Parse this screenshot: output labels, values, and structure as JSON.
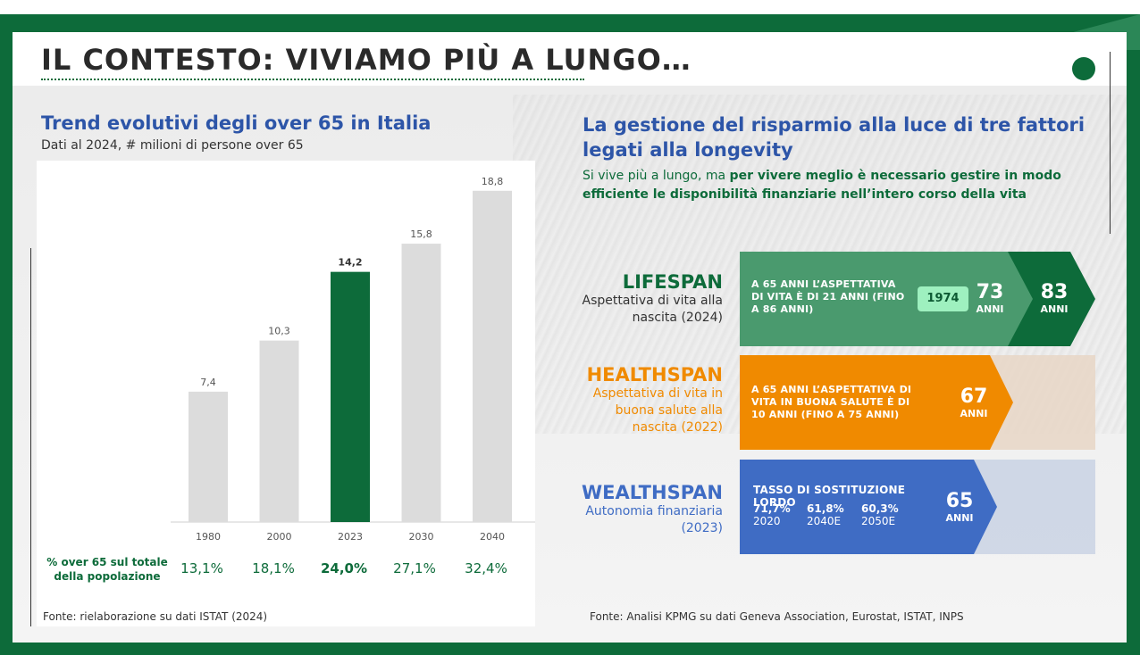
{
  "page": {
    "title": "IL CONTESTO: VIVIAMO PIÙ A LUNGO…"
  },
  "left": {
    "title": "Trend evolutivi degli over 65 in Italia",
    "subtitle": "Dati al 2024, # milioni di persone over 65",
    "pct_label": "% over 65 sul totale della popolazione",
    "pct_values": [
      "13,1%",
      "18,1%",
      "24,0%",
      "27,1%",
      "32,4%"
    ],
    "source": "Fonte: rielaborazione su dati ISTAT (2024)"
  },
  "chart_data": {
    "type": "bar",
    "categories": [
      "1980",
      "2000",
      "2023",
      "2030",
      "2040"
    ],
    "values": [
      7.4,
      10.3,
      14.2,
      15.8,
      18.8
    ],
    "value_labels": [
      "7,4",
      "10,3",
      "14,2",
      "15,8",
      "18,8"
    ],
    "highlight_index": 2,
    "ylim": [
      0,
      20
    ],
    "grid": false,
    "colors": {
      "bar": "#dcdcdc",
      "highlight": "#0d6b3a"
    }
  },
  "right": {
    "title": "La gestione del risparmio alla luce di tre fattori legati alla longevity",
    "desc_plain": "Si vive più a lungo, ma ",
    "desc_bold": "per vivere meglio è necessario gestire in modo efficiente le disponibilità finanziarie nell’intero corso della vita",
    "source": "Fonte: Analisi KPMG su dati Geneva Association, Eurostat, ISTAT, INPS"
  },
  "rows": {
    "lifespan": {
      "name": "LIFESPAN",
      "desc": "Aspettativa di vita alla nascita (2024)",
      "band_text": "A 65 ANNI L’ASPETTATIVA DI VITA È DI 21 ANNI (FINO A 86 ANNI)",
      "badge": "1974",
      "num1": "73",
      "unit1": "ANNI",
      "num2": "83",
      "unit2": "ANNI",
      "color": "#4a9a6e",
      "color_dark": "#0d6b3a"
    },
    "healthspan": {
      "name": "HEALTHSPAN",
      "desc": "Aspettativa di vita in buona salute alla nascita (2022)",
      "band_text": "A 65 ANNI L’ASPETTATIVA DI VITA IN BUONA SALUTE È DI 10 ANNI (FINO A 75 ANNI)",
      "num": "67",
      "unit": "ANNI",
      "color": "#f08a00"
    },
    "wealthspan": {
      "name": "WEALTHSPAN",
      "desc": "Autonomia finanziaria (2023)",
      "band_text": "TASSO DI SOSTITUZIONE LORDO",
      "items": [
        {
          "pct": "71,7%",
          "year": "2020"
        },
        {
          "pct": "61,8%",
          "year": "2040E"
        },
        {
          "pct": "60,3%",
          "year": "2050E"
        }
      ],
      "num": "65",
      "unit": "ANNI",
      "color": "#3f6cc4"
    }
  }
}
